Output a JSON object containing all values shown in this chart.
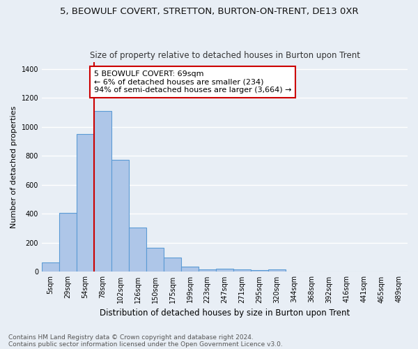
{
  "title_line1": "5, BEOWULF COVERT, STRETTON, BURTON-ON-TRENT, DE13 0XR",
  "title_line2": "Size of property relative to detached houses in Burton upon Trent",
  "xlabel": "Distribution of detached houses by size in Burton upon Trent",
  "ylabel": "Number of detached properties",
  "footer_line1": "Contains HM Land Registry data © Crown copyright and database right 2024.",
  "footer_line2": "Contains public sector information licensed under the Open Government Licence v3.0.",
  "categories": [
    "5sqm",
    "29sqm",
    "54sqm",
    "78sqm",
    "102sqm",
    "126sqm",
    "150sqm",
    "175sqm",
    "199sqm",
    "223sqm",
    "247sqm",
    "271sqm",
    "295sqm",
    "320sqm",
    "344sqm",
    "368sqm",
    "392sqm",
    "416sqm",
    "441sqm",
    "465sqm",
    "489sqm"
  ],
  "values": [
    65,
    405,
    950,
    1110,
    775,
    305,
    165,
    100,
    38,
    18,
    20,
    15,
    12,
    15,
    0,
    0,
    0,
    0,
    0,
    0,
    0
  ],
  "bar_color": "#aec6e8",
  "bar_edge_color": "#5b9bd5",
  "vline_color": "#cc0000",
  "annotation_text": "5 BEOWULF COVERT: 69sqm\n← 6% of detached houses are smaller (234)\n94% of semi-detached houses are larger (3,664) →",
  "annotation_box_color": "#ffffff",
  "annotation_edge_color": "#cc0000",
  "ylim": [
    0,
    1450
  ],
  "yticks": [
    0,
    200,
    400,
    600,
    800,
    1000,
    1200,
    1400
  ],
  "bg_color": "#e8eef5",
  "plot_bg_color": "#e8eef5",
  "grid_color": "#ffffff",
  "title_fontsize": 9.5,
  "subtitle_fontsize": 8.5,
  "ylabel_fontsize": 8,
  "xlabel_fontsize": 8.5,
  "annotation_fontsize": 8,
  "tick_fontsize": 7,
  "footer_fontsize": 6.5
}
